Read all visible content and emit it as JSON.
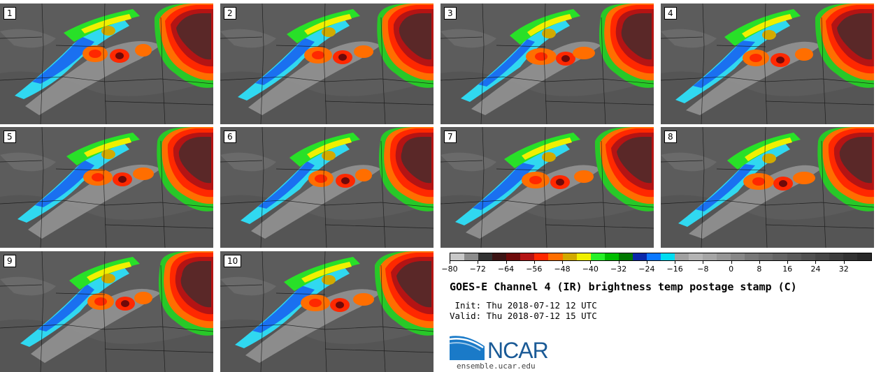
{
  "panels": [
    {
      "label": "1"
    },
    {
      "label": "2"
    },
    {
      "label": "3"
    },
    {
      "label": "4"
    },
    {
      "label": "5"
    },
    {
      "label": "6"
    },
    {
      "label": "7"
    },
    {
      "label": "8"
    },
    {
      "label": "9"
    },
    {
      "label": "10"
    }
  ],
  "colorbar": {
    "colors": [
      "#c8c8c8",
      "#8c8c8c",
      "#323232",
      "#3c1414",
      "#6e0a0a",
      "#b41414",
      "#ff2800",
      "#ff6e00",
      "#d2aa00",
      "#f0f000",
      "#28f028",
      "#00be00",
      "#007800",
      "#0a28aa",
      "#0a78ff",
      "#00dcf0",
      "#a0a0a0",
      "#b4b4b4",
      "#a5a5a5",
      "#969696",
      "#878787",
      "#787878",
      "#6e6e6e",
      "#646464",
      "#5a5a5a",
      "#505050",
      "#464646",
      "#3c3c3c",
      "#323232",
      "#282828"
    ],
    "tick_labels": [
      "−80",
      "−72",
      "−64",
      "−56",
      "−48",
      "−40",
      "−32",
      "−24",
      "−16",
      "−8",
      "0",
      "8",
      "16",
      "24",
      "32"
    ]
  },
  "title": "GOES-E Channel 4 (IR) brightness temp postage stamp (C)",
  "init_line": " Init: Thu 2018-07-12 12 UTC",
  "valid_line": "Valid: Thu 2018-07-12 15 UTC",
  "logo": {
    "text": "NCAR",
    "color": "#1a5a96"
  },
  "website": "ensemble.ucar.edu"
}
